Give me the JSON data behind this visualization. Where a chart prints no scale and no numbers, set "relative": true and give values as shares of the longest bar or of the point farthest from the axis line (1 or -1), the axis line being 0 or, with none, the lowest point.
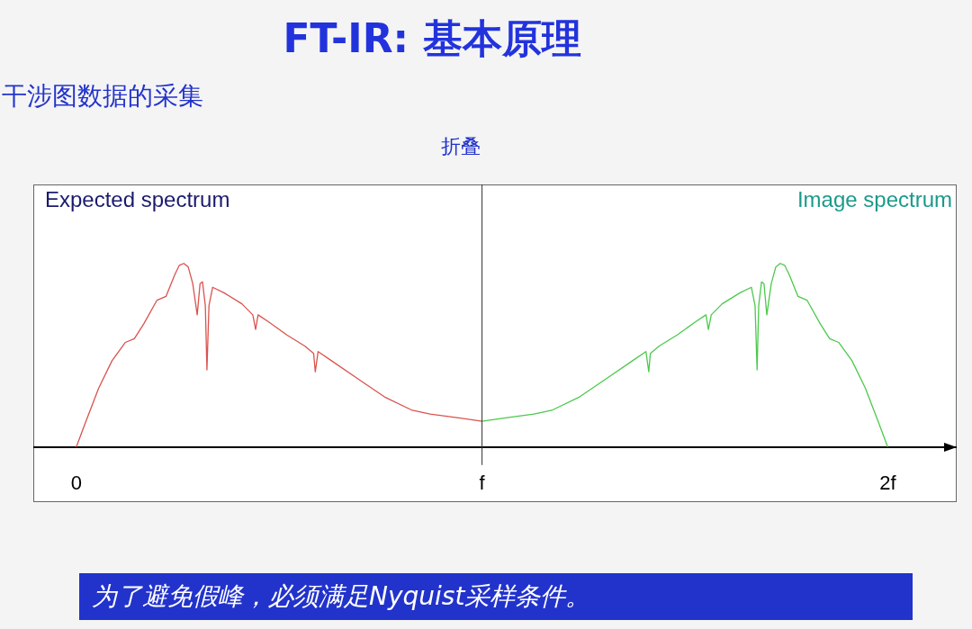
{
  "chart_data": {
    "type": "line",
    "title": "FT-IR: 基本原理",
    "subtitle": "干涉图数据的采集",
    "relative": true,
    "legend": false,
    "grid": false,
    "marker": "none",
    "xlim": [
      -0.106,
      2.17
    ],
    "xticks": [
      {
        "value": 0,
        "label": "0"
      },
      {
        "value": 1,
        "label": "f"
      },
      {
        "value": 2,
        "label": "2f"
      }
    ],
    "ref_lines": [
      {
        "axis": "x",
        "value": 1,
        "label": null,
        "color": "#333333"
      }
    ],
    "annotations": [
      "折叠",
      "Expected spectrum",
      "Image spectrum",
      "为了避免假峰，必须满足Nyquist采样条件。"
    ],
    "series": [
      {
        "color": "#d9534f",
        "x": [
          0,
          0.022,
          0.055,
          0.088,
          0.121,
          0.143,
          0.166,
          0.199,
          0.221,
          0.243,
          0.254,
          0.265,
          0.276,
          0.287,
          0.298,
          0.305,
          0.311,
          0.318,
          0.322,
          0.327,
          0.336,
          0.364,
          0.408,
          0.435,
          0.442,
          0.448,
          0.475,
          0.519,
          0.563,
          0.585,
          0.589,
          0.596,
          0.629,
          0.695,
          0.762,
          0.828,
          0.872,
          0.938,
          1
        ],
        "values": [
          0,
          0.13,
          0.32,
          0.47,
          0.57,
          0.59,
          0.67,
          0.8,
          0.82,
          0.94,
          0.99,
          1,
          0.98,
          0.89,
          0.72,
          0.89,
          0.9,
          0.77,
          0.42,
          0.77,
          0.87,
          0.84,
          0.78,
          0.72,
          0.64,
          0.72,
          0.68,
          0.61,
          0.55,
          0.51,
          0.41,
          0.52,
          0.47,
          0.37,
          0.27,
          0.2,
          0.18,
          0.16,
          0.14
        ]
      },
      {
        "color": "#4cc94c",
        "x": [
          1,
          1.062,
          1.128,
          1.172,
          1.238,
          1.305,
          1.371,
          1.404,
          1.411,
          1.415,
          1.437,
          1.481,
          1.525,
          1.552,
          1.558,
          1.565,
          1.592,
          1.636,
          1.664,
          1.673,
          1.678,
          1.682,
          1.689,
          1.695,
          1.702,
          1.713,
          1.724,
          1.735,
          1.746,
          1.757,
          1.779,
          1.801,
          1.834,
          1.857,
          1.879,
          1.912,
          1.945,
          1.978,
          2
        ],
        "values": [
          0.14,
          0.16,
          0.18,
          0.2,
          0.27,
          0.37,
          0.47,
          0.52,
          0.41,
          0.51,
          0.55,
          0.61,
          0.68,
          0.72,
          0.64,
          0.72,
          0.78,
          0.84,
          0.87,
          0.77,
          0.42,
          0.77,
          0.9,
          0.89,
          0.72,
          0.89,
          0.98,
          1,
          0.99,
          0.94,
          0.82,
          0.8,
          0.67,
          0.59,
          0.57,
          0.47,
          0.32,
          0.13,
          0
        ]
      }
    ]
  }
}
